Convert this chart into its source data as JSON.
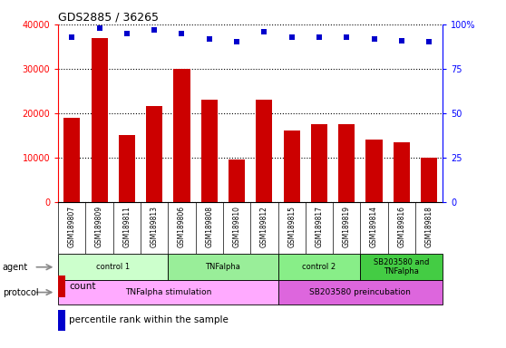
{
  "title": "GDS2885 / 36265",
  "samples": [
    "GSM189807",
    "GSM189809",
    "GSM189811",
    "GSM189813",
    "GSM189806",
    "GSM189808",
    "GSM189810",
    "GSM189812",
    "GSM189815",
    "GSM189817",
    "GSM189819",
    "GSM189814",
    "GSM189816",
    "GSM189818"
  ],
  "counts": [
    19000,
    37000,
    15000,
    21500,
    30000,
    23000,
    9500,
    23000,
    16000,
    17500,
    17500,
    14000,
    13500,
    10000
  ],
  "percentile_ranks": [
    93,
    98,
    95,
    97,
    95,
    92,
    90,
    96,
    93,
    93,
    93,
    92,
    91,
    90
  ],
  "bar_color": "#cc0000",
  "dot_color": "#0000cc",
  "ylim_left": [
    0,
    40000
  ],
  "ylim_right": [
    0,
    100
  ],
  "yticks_left": [
    0,
    10000,
    20000,
    30000,
    40000
  ],
  "yticks_right": [
    0,
    25,
    50,
    75,
    100
  ],
  "agent_groups": [
    {
      "label": "control 1",
      "start": 0,
      "end": 4,
      "color": "#ccffcc"
    },
    {
      "label": "TNFalpha",
      "start": 4,
      "end": 8,
      "color": "#99ee99"
    },
    {
      "label": "control 2",
      "start": 8,
      "end": 11,
      "color": "#88ee88"
    },
    {
      "label": "SB203580 and\nTNFalpha",
      "start": 11,
      "end": 14,
      "color": "#44cc44"
    }
  ],
  "protocol_groups": [
    {
      "label": "TNFalpha stimulation",
      "start": 0,
      "end": 8,
      "color": "#ffaaff"
    },
    {
      "label": "SB203580 preincubation",
      "start": 8,
      "end": 14,
      "color": "#dd66dd"
    }
  ],
  "legend_count_label": "count",
  "legend_pct_label": "percentile rank within the sample",
  "xlabel_agent": "agent",
  "xlabel_protocol": "protocol",
  "bg_color": "#ffffff"
}
